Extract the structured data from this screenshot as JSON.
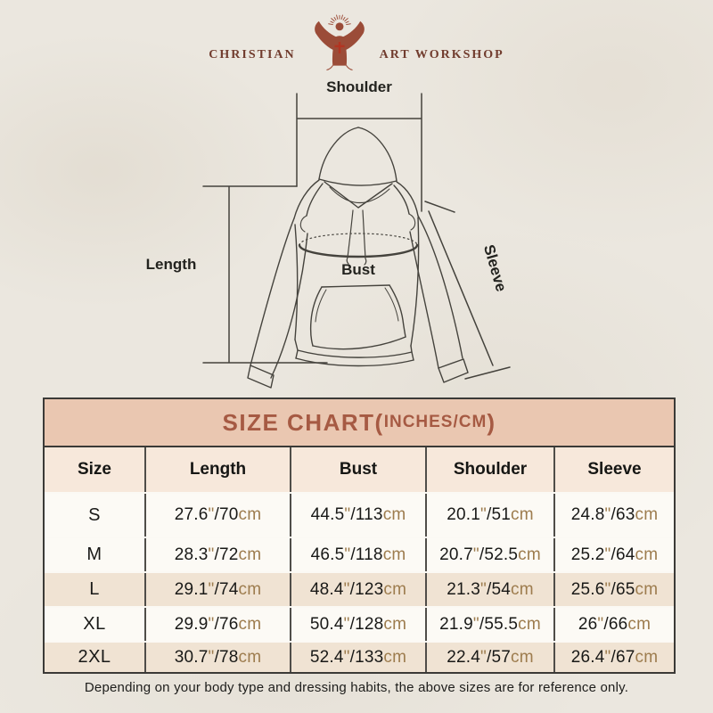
{
  "logo": {
    "left_text": "CHRISTIAN",
    "right_text": "ART WORKSHOP",
    "figure_icon": "jesus-open-arms-icon",
    "brand_color": "#713c2e"
  },
  "diagram": {
    "labels": {
      "shoulder": "Shoulder",
      "length": "Length",
      "bust": "Bust",
      "sleeve": "Sleeve"
    }
  },
  "size_chart": {
    "title_main": "SIZE CHART(",
    "title_units": "INCHES/CM",
    "title_close": ")",
    "title_color": "#a65a43",
    "title_bar_bg": "#eac7b1",
    "unit_color": "#9d7c4e",
    "columns": [
      "Size",
      "Length",
      "Bust",
      "Shoulder",
      "Sleeve"
    ],
    "units": {
      "inch_mark": "\"",
      "separator": "/",
      "cm_suffix": "cm"
    },
    "rows": [
      {
        "size": "S",
        "length": {
          "in": "27.6",
          "cm": "70"
        },
        "bust": {
          "in": "44.5",
          "cm": "113"
        },
        "shoulder": {
          "in": "20.1",
          "cm": "51"
        },
        "sleeve": {
          "in": "24.8",
          "cm": "63"
        }
      },
      {
        "size": "M",
        "length": {
          "in": "28.3",
          "cm": "72"
        },
        "bust": {
          "in": "46.5",
          "cm": "118"
        },
        "shoulder": {
          "in": "20.7",
          "cm": "52.5"
        },
        "sleeve": {
          "in": "25.2",
          "cm": "64"
        }
      },
      {
        "size": "L",
        "length": {
          "in": "29.1",
          "cm": "74"
        },
        "bust": {
          "in": "48.4",
          "cm": "123"
        },
        "shoulder": {
          "in": "21.3",
          "cm": "54"
        },
        "sleeve": {
          "in": "25.6",
          "cm": "65"
        }
      },
      {
        "size": "XL",
        "length": {
          "in": "29.9",
          "cm": "76"
        },
        "bust": {
          "in": "50.4",
          "cm": "128"
        },
        "shoulder": {
          "in": "21.9",
          "cm": "55.5"
        },
        "sleeve": {
          "in": "26",
          "cm": "66"
        }
      },
      {
        "size": "2XL",
        "length": {
          "in": "30.7",
          "cm": "78"
        },
        "bust": {
          "in": "52.4",
          "cm": "133"
        },
        "shoulder": {
          "in": "22.4",
          "cm": "57"
        },
        "sleeve": {
          "in": "26.4",
          "cm": "67"
        }
      }
    ]
  },
  "footer": {
    "note": "Depending on your body type and dressing habits, the above sizes are for reference only."
  }
}
